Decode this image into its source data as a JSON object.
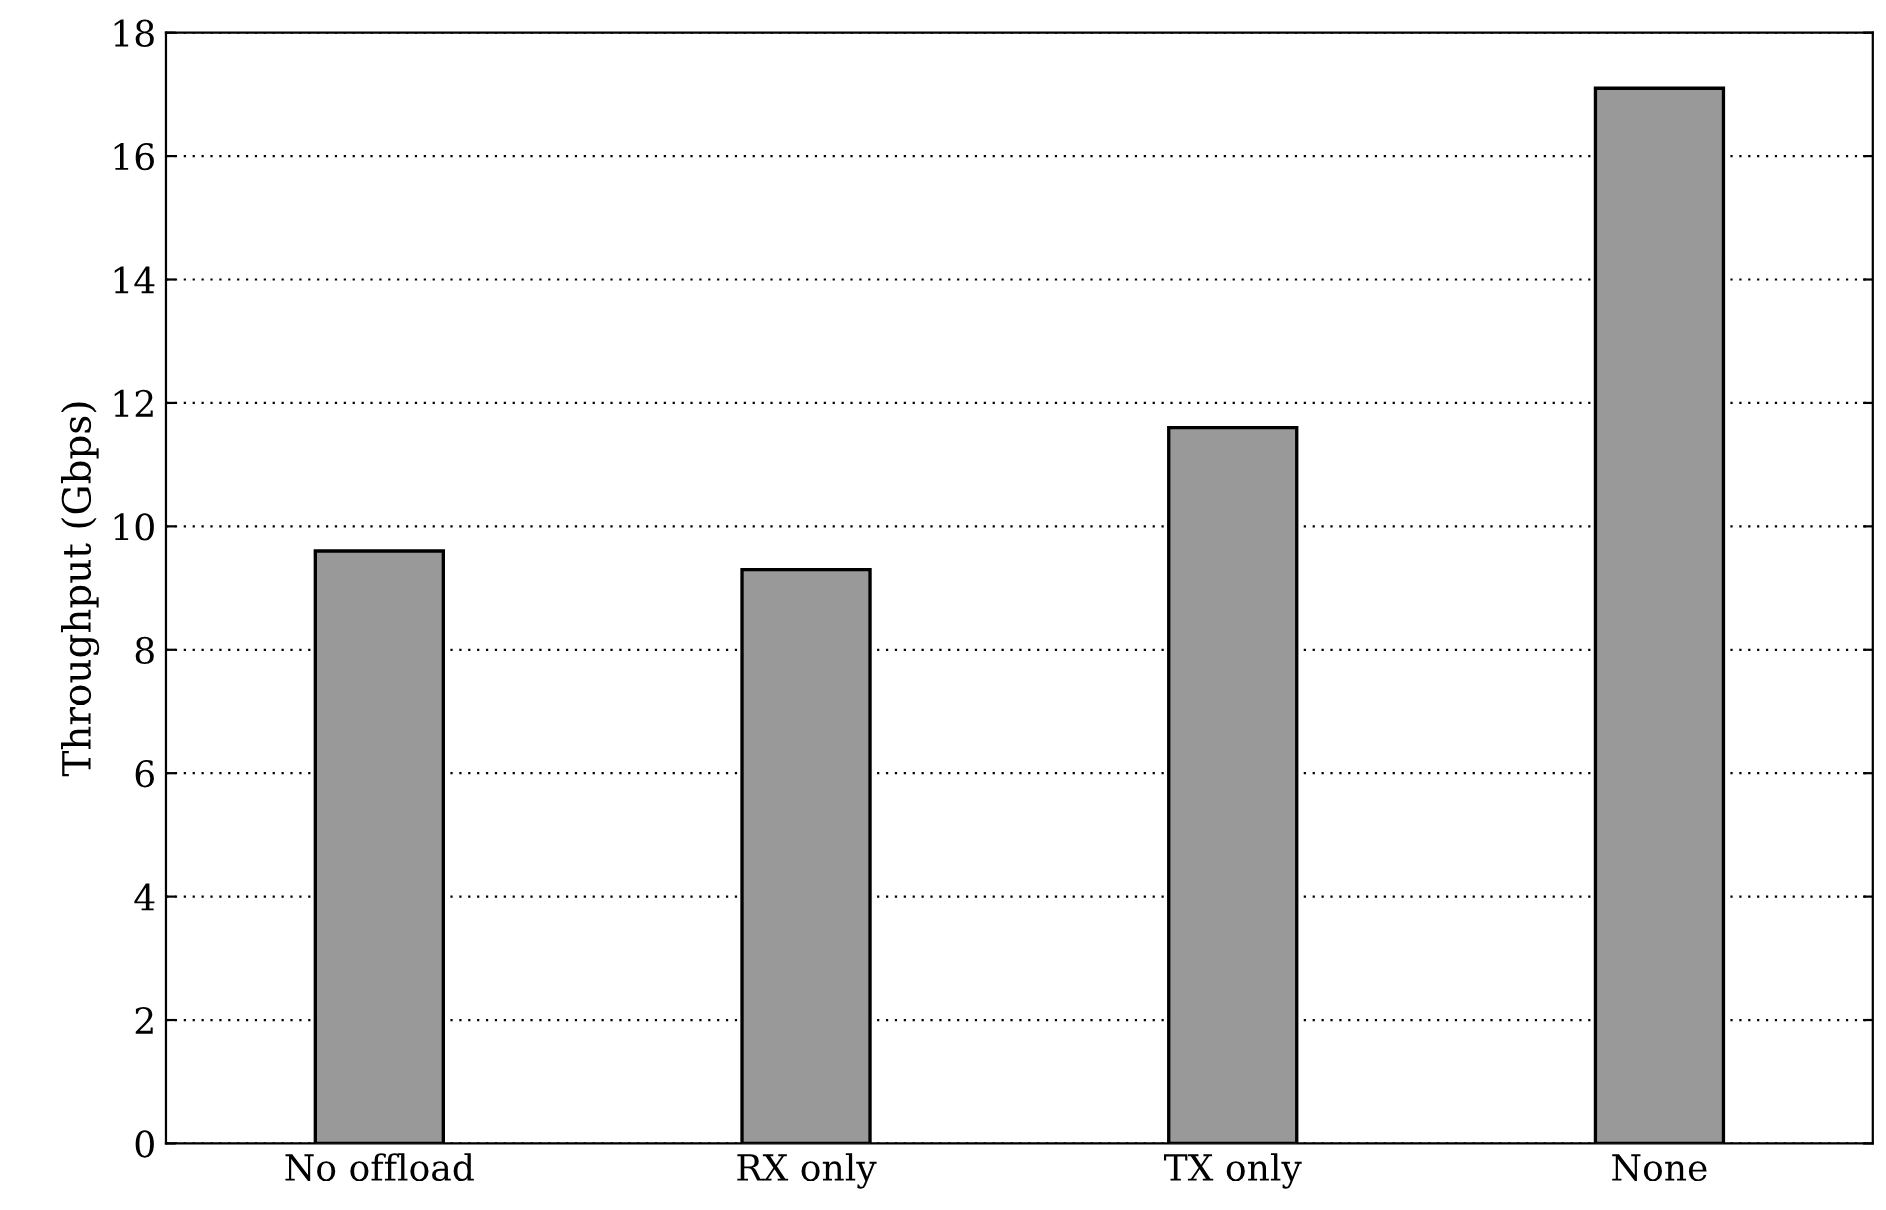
{
  "chart_data": {
    "type": "bar",
    "ylabel": "Throughput (Gbps)",
    "categories": [
      "No offload",
      "RX only",
      "TX only",
      "None"
    ],
    "values": [
      9.6,
      9.3,
      11.6,
      17.1
    ],
    "color": "#999999",
    "ylim": [
      0,
      18
    ],
    "yticks": [
      0,
      2,
      4,
      6,
      8,
      10,
      12,
      14,
      16,
      18
    ],
    "grid": "y"
  }
}
